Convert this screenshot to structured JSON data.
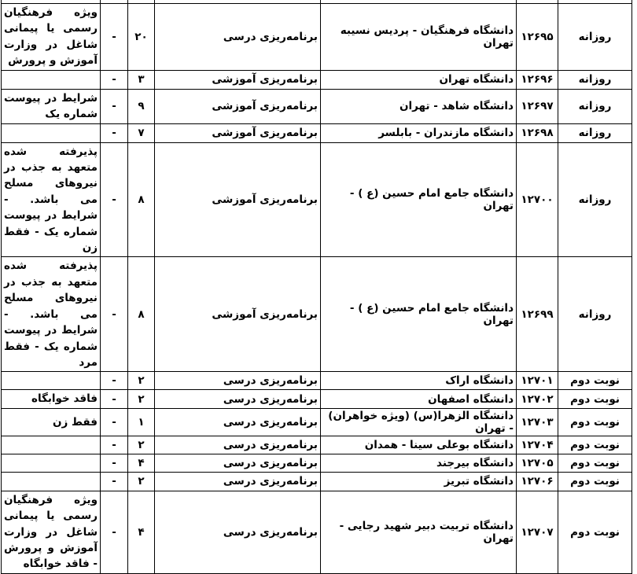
{
  "table": {
    "rows": [
      {
        "type": "روزانه",
        "code": "۱۲۶۹۵",
        "university": "دانشگاه فرهنگیان - پردیس نسیبه تهران",
        "program": "برنامه‌ریزی درسی",
        "capacity": "۲۰",
        "dash": "-",
        "notes": "ویژه فرهنگیان رسمی یا پیمانی شاغل در وزارت آموزش و پرورش"
      },
      {
        "type": "روزانه",
        "code": "۱۲۶۹۶",
        "university": "دانشگاه تهران",
        "program": "برنامه‌ریزی آموزشی",
        "capacity": "۳",
        "dash": "-",
        "notes": ""
      },
      {
        "type": "روزانه",
        "code": "۱۲۶۹۷",
        "university": "دانشگاه شاهد - تهران",
        "program": "برنامه‌ریزی آموزشی",
        "capacity": "۹",
        "dash": "-",
        "notes": "شرایط در پیوست شماره یک"
      },
      {
        "type": "روزانه",
        "code": "۱۲۶۹۸",
        "university": "دانشگاه مازندران - بابلسر",
        "program": "برنامه‌ریزی آموزشی",
        "capacity": "۷",
        "dash": "-",
        "notes": ""
      },
      {
        "type": "روزانه",
        "code": "۱۲۷۰۰",
        "university": "دانشگاه جامع امام حسین (ع ) - تهران",
        "program": "برنامه‌ریزی آموزشی",
        "capacity": "۸",
        "dash": "-",
        "notes": "پذیرفته شده متعهد به جذب در نیروهای مسلح می باشد. - شرایط در پیوست شماره یک - فقط زن"
      },
      {
        "type": "روزانه",
        "code": "۱۲۶۹۹",
        "university": "دانشگاه جامع امام حسین (ع ) - تهران",
        "program": "برنامه‌ریزی آموزشی",
        "capacity": "۸",
        "dash": "-",
        "notes": "پذیرفته شده متعهد به جذب در نیروهای مسلح می باشد. - شرایط در پیوست شماره یک - فقط مرد"
      },
      {
        "type": "نوبت دوم",
        "code": "۱۲۷۰۱",
        "university": "دانشگاه اراک",
        "program": "برنامه‌ریزی درسی",
        "capacity": "۲",
        "dash": "-",
        "notes": ""
      },
      {
        "type": "نوبت دوم",
        "code": "۱۲۷۰۲",
        "university": "دانشگاه اصفهان",
        "program": "برنامه‌ریزی درسی",
        "capacity": "۲",
        "dash": "-",
        "notes": "فاقد خوابگاه"
      },
      {
        "type": "نوبت دوم",
        "code": "۱۲۷۰۳",
        "university": "دانشگاه الزهرا(س) (ویژه خواهران) - تهران",
        "program": "برنامه‌ریزی درسی",
        "capacity": "۱",
        "dash": "-",
        "notes": "فقط زن"
      },
      {
        "type": "نوبت دوم",
        "code": "۱۲۷۰۴",
        "university": "دانشگاه بوعلی سینا - همدان",
        "program": "برنامه‌ریزی درسی",
        "capacity": "۲",
        "dash": "-",
        "notes": ""
      },
      {
        "type": "نوبت دوم",
        "code": "۱۲۷۰۵",
        "university": "دانشگاه بیرجند",
        "program": "برنامه‌ریزی درسی",
        "capacity": "۴",
        "dash": "-",
        "notes": ""
      },
      {
        "type": "نوبت دوم",
        "code": "۱۲۷۰۶",
        "university": "دانشگاه تبریز",
        "program": "برنامه‌ریزی درسی",
        "capacity": "۲",
        "dash": "-",
        "notes": ""
      },
      {
        "type": "نوبت دوم",
        "code": "۱۲۷۰۷",
        "university": "دانشگاه تربیت دبیر شهید رجایی - تهران",
        "program": "برنامه‌ریزی درسی",
        "capacity": "۴",
        "dash": "-",
        "notes": "ویژه فرهنگیان رسمی یا پیمانی شاغل در وزارت آموزش و پرورش - فاقد خوابگاه"
      }
    ]
  }
}
